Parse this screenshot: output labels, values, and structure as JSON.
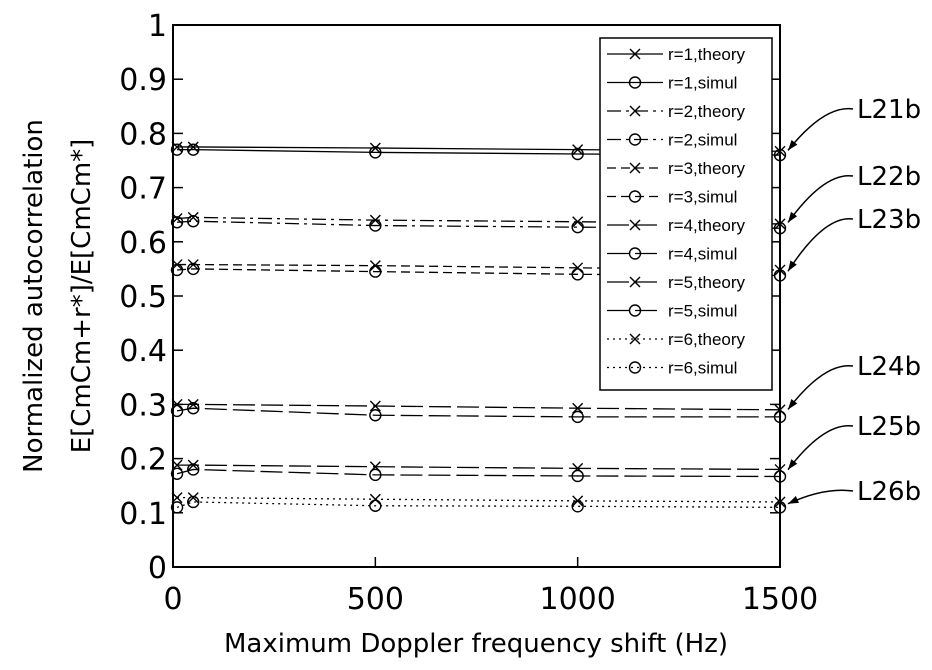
{
  "chart_data": {
    "type": "line",
    "title": "",
    "xlabel": "Maximum Doppler frequency shift (Hz)",
    "ylabel_lines": [
      "Normalized autocorrelation",
      "E[CmCm+r*]/E[CmCm*]"
    ],
    "xlim": [
      0,
      1500
    ],
    "ylim": [
      0,
      1
    ],
    "xticks": [
      "0",
      "500",
      "1000",
      "1500"
    ],
    "yticks": [
      "0",
      "0.1",
      "0.2",
      "0.3",
      "0.4",
      "0.5",
      "0.6",
      "0.7",
      "0.8",
      "0.9",
      "1"
    ],
    "grid": false,
    "legend_position": "top-right",
    "x": [
      10,
      50,
      500,
      1000,
      1500
    ],
    "series": [
      {
        "name": "r=1,theory",
        "marker": "x",
        "dash": "solid",
        "values": [
          0.775,
          0.775,
          0.773,
          0.77,
          0.767
        ]
      },
      {
        "name": "r=1,simul",
        "marker": "o",
        "dash": "solid",
        "values": [
          0.77,
          0.77,
          0.765,
          0.762,
          0.76
        ]
      },
      {
        "name": "r=2,theory",
        "marker": "x",
        "dash": "dashdot",
        "values": [
          0.643,
          0.645,
          0.64,
          0.637,
          0.633
        ]
      },
      {
        "name": "r=2,simul",
        "marker": "o",
        "dash": "dashdot",
        "values": [
          0.636,
          0.638,
          0.63,
          0.627,
          0.625
        ]
      },
      {
        "name": "r=3,theory",
        "marker": "x",
        "dash": "dashed",
        "values": [
          0.558,
          0.558,
          0.556,
          0.552,
          0.548
        ]
      },
      {
        "name": "r=3,simul",
        "marker": "o",
        "dash": "dashed",
        "values": [
          0.548,
          0.55,
          0.545,
          0.54,
          0.538
        ]
      },
      {
        "name": "r=4,theory",
        "marker": "x",
        "dash": "longdash",
        "values": [
          0.3,
          0.3,
          0.297,
          0.293,
          0.29
        ]
      },
      {
        "name": "r=4,simul",
        "marker": "o",
        "dash": "longdash",
        "values": [
          0.288,
          0.293,
          0.28,
          0.277,
          0.277
        ]
      },
      {
        "name": "r=5,theory",
        "marker": "x",
        "dash": "longdash",
        "values": [
          0.188,
          0.188,
          0.185,
          0.182,
          0.18
        ]
      },
      {
        "name": "r=5,simul",
        "marker": "o",
        "dash": "longdash",
        "values": [
          0.172,
          0.18,
          0.17,
          0.168,
          0.167
        ]
      },
      {
        "name": "r=6,theory",
        "marker": "x",
        "dash": "dotted",
        "values": [
          0.128,
          0.128,
          0.125,
          0.122,
          0.12
        ]
      },
      {
        "name": "r=6,simul",
        "marker": "o",
        "dash": "dotted",
        "values": [
          0.11,
          0.12,
          0.113,
          0.112,
          0.11
        ]
      }
    ],
    "annotations": [
      {
        "label": "L21b",
        "target": [
          1500,
          0.765
        ]
      },
      {
        "label": "L22b",
        "target": [
          1500,
          0.632
        ]
      },
      {
        "label": "L23b",
        "target": [
          1500,
          0.542
        ]
      },
      {
        "label": "L24b",
        "target": [
          1500,
          0.287
        ]
      },
      {
        "label": "L25b",
        "target": [
          1500,
          0.176
        ]
      },
      {
        "label": "L26b",
        "target": [
          1500,
          0.113
        ]
      }
    ]
  }
}
